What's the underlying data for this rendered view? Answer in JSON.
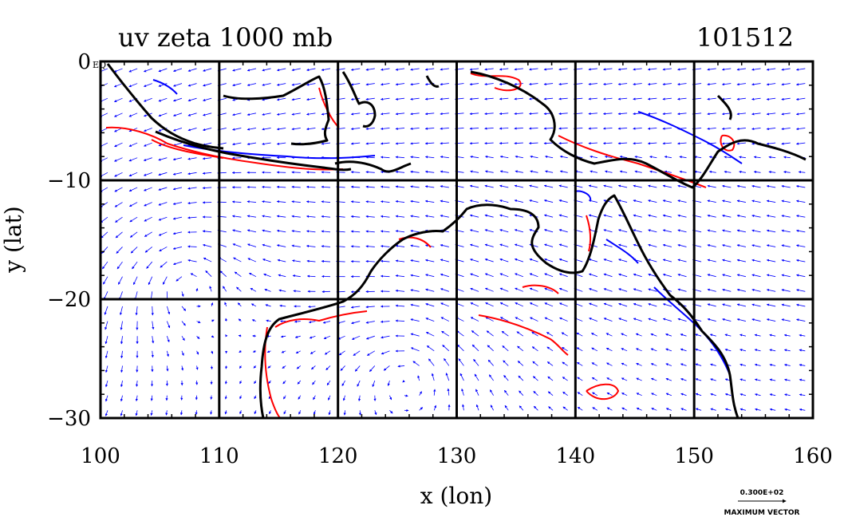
{
  "chart_data": {
    "type": "vector-field-contour-map",
    "title_left": "uv zeta 1000 mb",
    "title_right": "101512",
    "xlabel": "x (lon)",
    "ylabel": "y (lat)",
    "xlim": [
      100,
      160
    ],
    "ylim": [
      -30,
      0
    ],
    "xticks": [
      100,
      110,
      120,
      130,
      140,
      150,
      160
    ],
    "yticks": [
      0,
      -10,
      -20,
      -30
    ],
    "xtick_labels": [
      "100",
      "110",
      "120",
      "130",
      "140",
      "150",
      "160"
    ],
    "ytick_labels": [
      "0",
      "−10",
      "−20",
      "−30"
    ],
    "grid_lon": [
      110,
      120,
      130,
      140,
      150
    ],
    "grid_lat": [
      -10,
      -20
    ],
    "corner_label": "EQ",
    "vector_reference": {
      "magnitude_label": "0.300E+02",
      "caption": "MAXIMUM VECTOR"
    },
    "colors": {
      "vectors": "#0000ff",
      "positive_contour": "#ff0000",
      "negative_contour": "#0000ff",
      "coastline": "#000000",
      "grid": "#000000"
    }
  }
}
